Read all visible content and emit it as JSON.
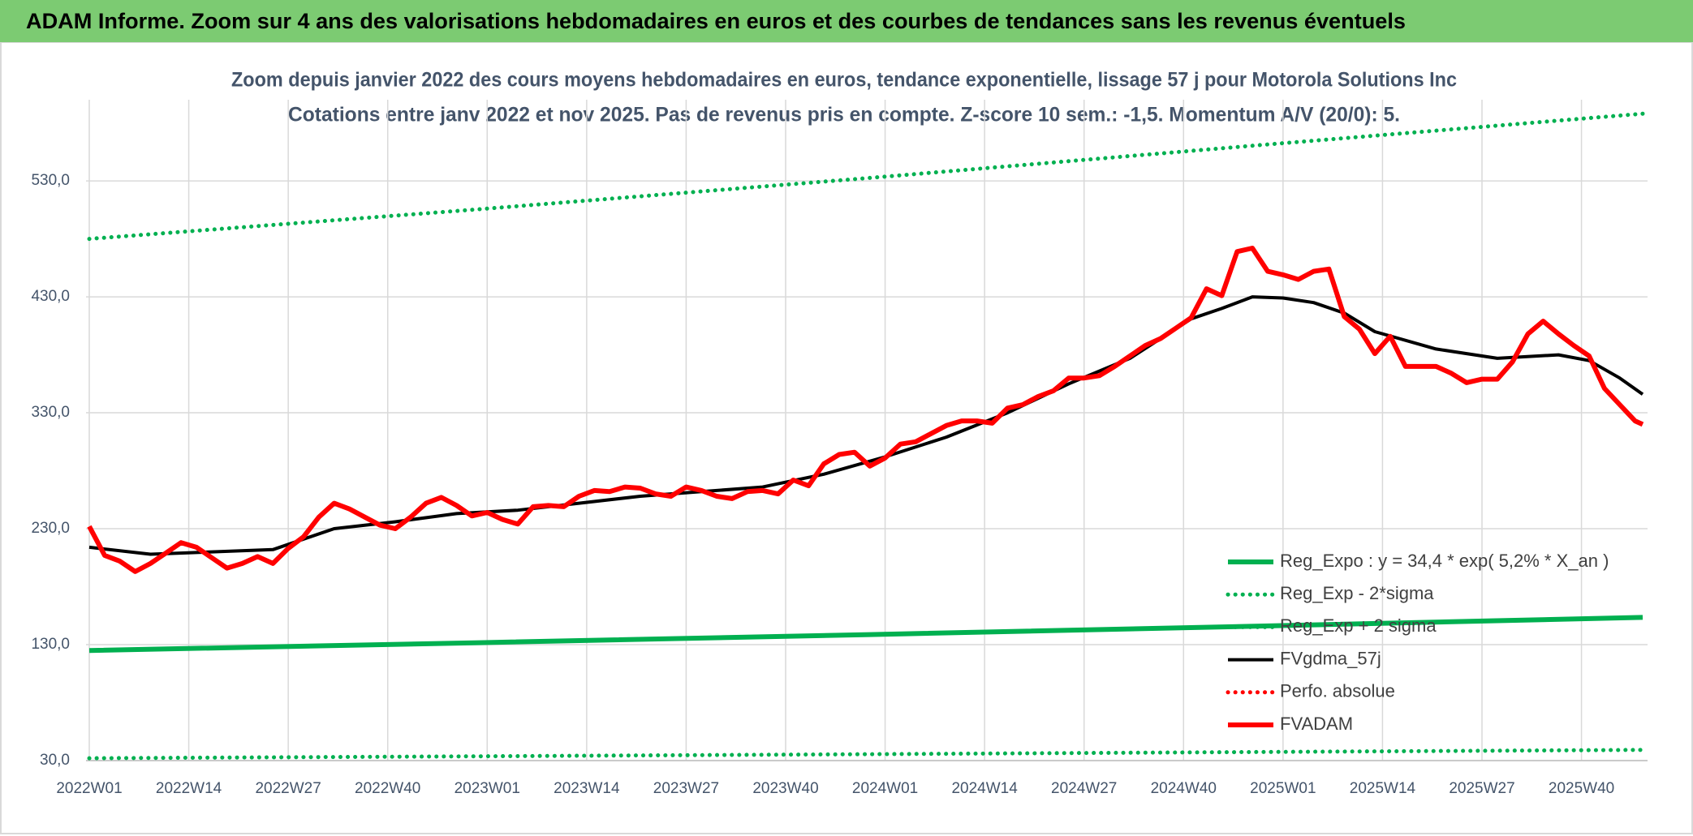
{
  "header": {
    "title": "ADAM Informe. Zoom sur 4 ans des valorisations hebdomadaires en euros et des courbes de tendances sans les revenus éventuels"
  },
  "chart_data": {
    "type": "line",
    "title": "Zoom depuis janvier 2022 des cours moyens hebdomadaires en euros, tendance exponentielle, lissage 57 j pour Motorola Solutions Inc",
    "subtitle": "Cotations entre janv 2022 et nov 2025. Pas de revenus pris en compte. Z-score 10 sem.: -1,5. Momentum A/V (20/0): 5.",
    "xlim": [
      0,
      203
    ],
    "xticks": [
      {
        "value": 0,
        "label": "2022W01"
      },
      {
        "value": 13,
        "label": "2022W14"
      },
      {
        "value": 26,
        "label": "2022W27"
      },
      {
        "value": 39,
        "label": "2022W40"
      },
      {
        "value": 52,
        "label": "2023W01"
      },
      {
        "value": 65,
        "label": "2023W14"
      },
      {
        "value": 78,
        "label": "2023W27"
      },
      {
        "value": 91,
        "label": "2023W40"
      },
      {
        "value": 104,
        "label": "2024W01"
      },
      {
        "value": 117,
        "label": "2024W14"
      },
      {
        "value": 130,
        "label": "2024W27"
      },
      {
        "value": 143,
        "label": "2024W40"
      },
      {
        "value": 156,
        "label": "2025W01"
      },
      {
        "value": 169,
        "label": "2025W14"
      },
      {
        "value": 182,
        "label": "2025W27"
      },
      {
        "value": 195,
        "label": "2025W40"
      }
    ],
    "ylim": [
      30,
      600
    ],
    "yticks": [
      {
        "value": 30,
        "label": "30,0"
      },
      {
        "value": 130,
        "label": "130,0"
      },
      {
        "value": 230,
        "label": "230,0"
      },
      {
        "value": 330,
        "label": "330,0"
      },
      {
        "value": 430,
        "label": "430,0"
      },
      {
        "value": 530,
        "label": "530,0"
      }
    ],
    "grid": true,
    "legend": "bottom-right",
    "series": [
      {
        "name": "Reg_Expo : y = 34,4 * exp( 5,2% *  X_an )",
        "color": "#00b050",
        "style": "solid",
        "x": [
          0,
          51,
          102,
          153,
          203
        ],
        "values": [
          125,
          131.7,
          138.7,
          146,
          153.5
        ]
      },
      {
        "name": "Reg_Exp - 2*sigma",
        "color": "#00b050",
        "style": "dotted",
        "x": [
          0,
          51,
          102,
          153,
          203
        ],
        "values": [
          32,
          33.7,
          35.5,
          37.4,
          39.2
        ]
      },
      {
        "name": "Reg_Exp + 2 sigma",
        "color": "#00b050",
        "style": "dotted",
        "x": [
          0,
          51,
          102,
          153,
          203
        ],
        "values": [
          480,
          505.6,
          532.6,
          560.9,
          588
        ]
      },
      {
        "name": "FVgdma_57j",
        "color": "#000000",
        "style": "solid",
        "x": [
          0,
          8,
          16,
          24,
          32,
          40,
          48,
          56,
          64,
          72,
          80,
          88,
          96,
          104,
          112,
          120,
          128,
          136,
          144,
          148,
          152,
          156,
          160,
          164,
          168,
          176,
          184,
          192,
          196,
          200,
          203
        ],
        "values": [
          214,
          208,
          210,
          212,
          230,
          236,
          243,
          246,
          252,
          258,
          262,
          266,
          277,
          292,
          309,
          330,
          355,
          377,
          411,
          420,
          430,
          429,
          425,
          416,
          400,
          385,
          377,
          380,
          375,
          360,
          346
        ]
      },
      {
        "name": "Perfo. absolue",
        "color": "#ff0000",
        "style": "dotted"
      },
      {
        "name": "FVADAM",
        "color": "#ff0000",
        "style": "solid",
        "x": [
          0,
          2,
          4,
          6,
          8,
          10,
          12,
          14,
          16,
          18,
          20,
          22,
          24,
          26,
          28,
          30,
          32,
          34,
          36,
          38,
          40,
          42,
          44,
          46,
          48,
          50,
          52,
          54,
          56,
          58,
          60,
          62,
          64,
          66,
          68,
          70,
          72,
          74,
          76,
          78,
          80,
          82,
          84,
          86,
          88,
          90,
          92,
          94,
          96,
          98,
          100,
          102,
          104,
          106,
          108,
          110,
          112,
          114,
          116,
          118,
          120,
          122,
          124,
          126,
          128,
          130,
          132,
          134,
          136,
          138,
          140,
          142,
          144,
          146,
          148,
          150,
          152,
          154,
          156,
          158,
          160,
          162,
          164,
          166,
          168,
          170,
          172,
          174,
          176,
          178,
          180,
          182,
          184,
          186,
          188,
          190,
          192,
          194,
          196,
          198,
          200,
          202,
          203
        ],
        "values": [
          232,
          207,
          202,
          193,
          200,
          209,
          218,
          214,
          205,
          196,
          200,
          206,
          200,
          213,
          223,
          240,
          252,
          247,
          240,
          233,
          230,
          240,
          252,
          257,
          250,
          241,
          244,
          238,
          234,
          249,
          250,
          249,
          258,
          263,
          262,
          266,
          265,
          260,
          258,
          266,
          263,
          258,
          256,
          262,
          263,
          260,
          272,
          267,
          286,
          294,
          296,
          284,
          291,
          303,
          305,
          312,
          319,
          323,
          323,
          321,
          334,
          337,
          344,
          349,
          360,
          360,
          362,
          370,
          379,
          388,
          394,
          403,
          412,
          437,
          431,
          469,
          472,
          452,
          449,
          445,
          452,
          454,
          413,
          402,
          381,
          396,
          370,
          370,
          370,
          364,
          356,
          359,
          359,
          374,
          398,
          409,
          398,
          388,
          379,
          351,
          337,
          323,
          320
        ]
      }
    ]
  }
}
